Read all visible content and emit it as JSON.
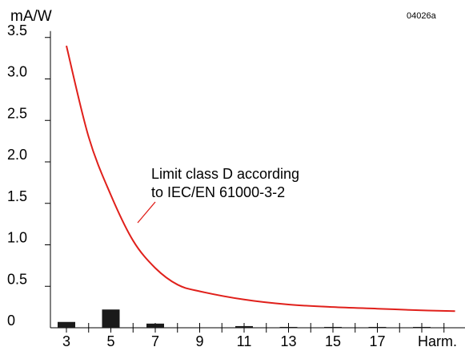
{
  "chart_data": {
    "type": "bar",
    "ylabel": "mA/W",
    "figure_code": "04026a",
    "yticks": [
      "0",
      "0.5",
      "1.0",
      "1.5",
      "2.0",
      "2.5",
      "3.0",
      "3.5"
    ],
    "ytick_values": [
      0,
      0.5,
      1.0,
      1.5,
      2.0,
      2.5,
      3.0,
      3.5
    ],
    "xlabel": "Harm.",
    "categories": [
      "3",
      "5",
      "7",
      "9",
      "11",
      "13",
      "15",
      "17"
    ],
    "category_values": [
      3,
      5,
      7,
      9,
      11,
      13,
      15,
      17
    ],
    "xlim": [
      2.5,
      21
    ],
    "ylim": [
      0,
      3.5
    ],
    "series": [
      {
        "type": "bar",
        "x": [
          3,
          5,
          7,
          11,
          13,
          15,
          17,
          19
        ],
        "values": [
          0.07,
          0.22,
          0.05,
          0.02,
          0.01,
          0.01,
          0.01,
          0.01
        ],
        "color": "#1a1a1a"
      },
      {
        "type": "line",
        "x": [
          3,
          4,
          5,
          6,
          7,
          8,
          9,
          11,
          13,
          15,
          17,
          19,
          20.5
        ],
        "values": [
          3.4,
          2.3,
          1.6,
          1.05,
          0.72,
          0.52,
          0.44,
          0.34,
          0.28,
          0.25,
          0.23,
          0.21,
          0.2
        ],
        "color": "#e0201b"
      }
    ],
    "annotation": {
      "lines": [
        "Limit class D according",
        "to IEC/EN 61000-3-2"
      ]
    }
  }
}
